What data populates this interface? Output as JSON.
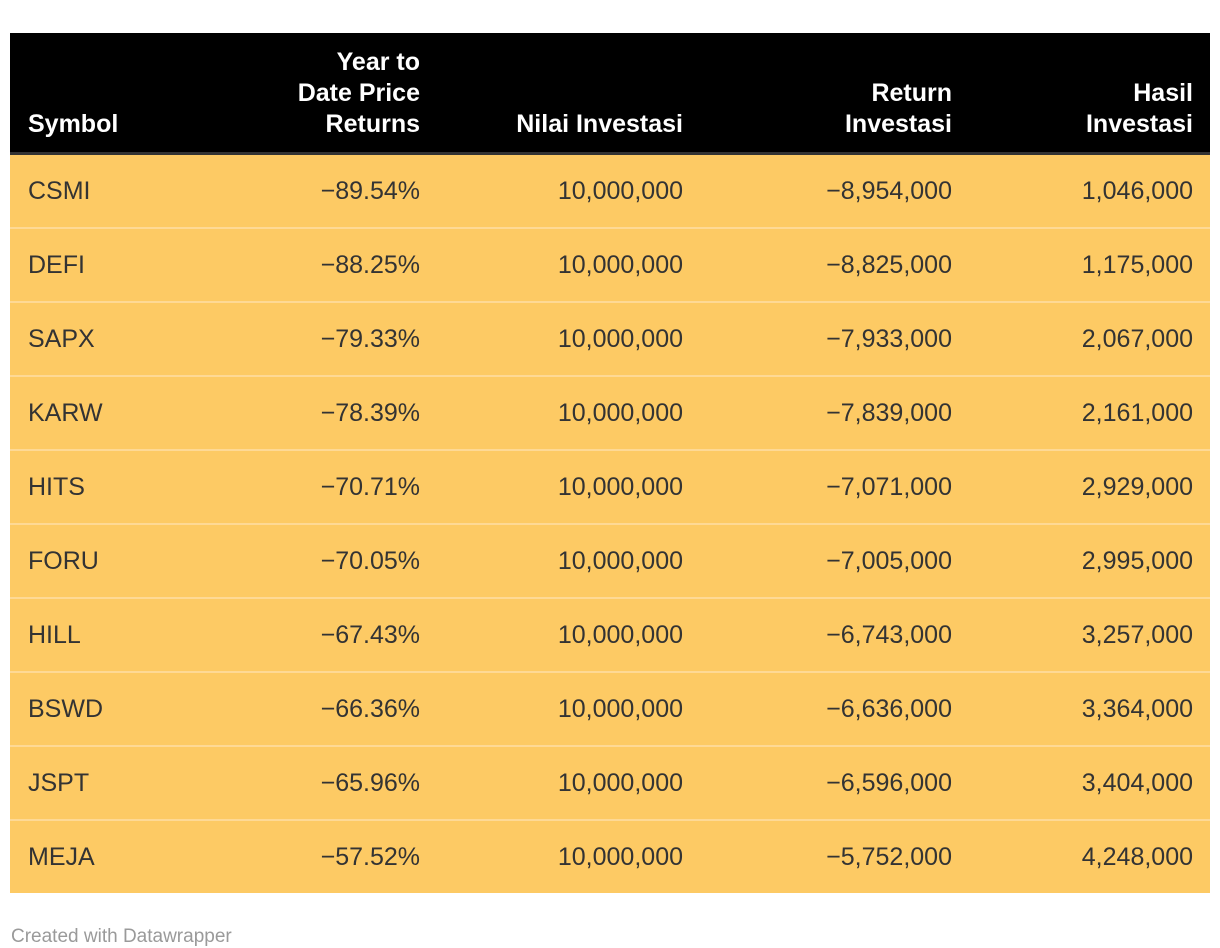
{
  "chart_data": {
    "type": "table",
    "columns": [
      {
        "label": "Symbol",
        "align": "left"
      },
      {
        "label": "Year to\nDate Price\nReturns",
        "align": "right"
      },
      {
        "label": "Nilai Investasi",
        "align": "right"
      },
      {
        "label": "Return\nInvestasi",
        "align": "right"
      },
      {
        "label": "Hasil\nInvestasi",
        "align": "right"
      }
    ],
    "rows": [
      [
        "CSMI",
        "−89.54%",
        "10,000,000",
        "−8,954,000",
        "1,046,000"
      ],
      [
        "DEFI",
        "−88.25%",
        "10,000,000",
        "−8,825,000",
        "1,175,000"
      ],
      [
        "SAPX",
        "−79.33%",
        "10,000,000",
        "−7,933,000",
        "2,067,000"
      ],
      [
        "KARW",
        "−78.39%",
        "10,000,000",
        "−7,839,000",
        "2,161,000"
      ],
      [
        "HITS",
        "−70.71%",
        "10,000,000",
        "−7,071,000",
        "2,929,000"
      ],
      [
        "FORU",
        "−70.05%",
        "10,000,000",
        "−7,005,000",
        "2,995,000"
      ],
      [
        "HILL",
        "−67.43%",
        "10,000,000",
        "−6,743,000",
        "3,257,000"
      ],
      [
        "BSWD",
        "−66.36%",
        "10,000,000",
        "−6,636,000",
        "3,364,000"
      ],
      [
        "JSPT",
        "−65.96%",
        "10,000,000",
        "−6,596,000",
        "3,404,000"
      ],
      [
        "MEJA",
        "−57.52%",
        "10,000,000",
        "−5,752,000",
        "4,248,000"
      ]
    ]
  },
  "footer": {
    "attribution": "Created with Datawrapper"
  },
  "colors": {
    "header_bg": "#000000",
    "header_text": "#ffffff",
    "header_border": "#333333",
    "row_bg": "#fdca64",
    "row_divider": "#fed995",
    "cell_text": "#333333",
    "attribution_text": "#9a9a9a"
  }
}
